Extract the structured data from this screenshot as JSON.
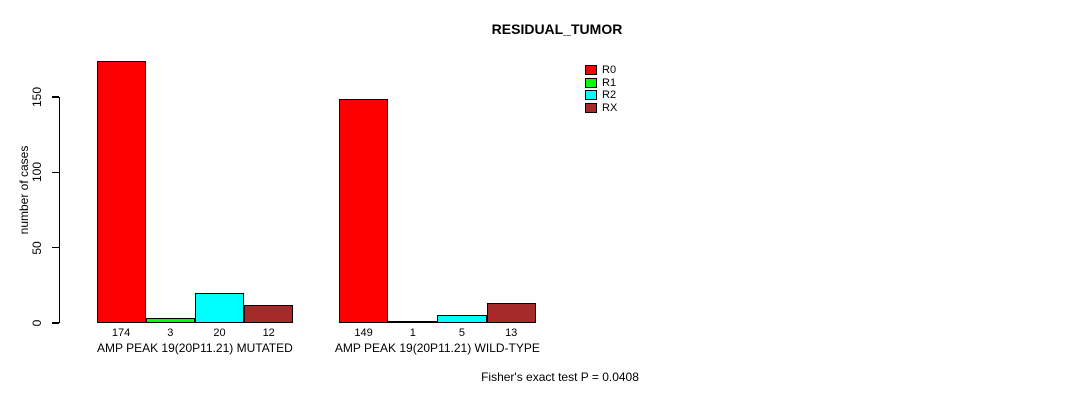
{
  "title": "RESIDUAL_TUMOR",
  "footer": "Fisher's exact test P = 0.0408",
  "chart_data": {
    "type": "bar",
    "title": "RESIDUAL_TUMOR",
    "xlabel": "",
    "ylabel": "number of cases",
    "ylim": [
      0,
      174
    ],
    "yticks": [
      0,
      50,
      100,
      150
    ],
    "grid": false,
    "legend_position": "top-right",
    "series": [
      {
        "name": "R0",
        "color": "#FF0000"
      },
      {
        "name": "R1",
        "color": "#00FF00"
      },
      {
        "name": "R2",
        "color": "#00FFFF"
      },
      {
        "name": "RX",
        "color": "#A52A2A"
      }
    ],
    "groups": [
      {
        "label": "AMP PEAK 19(20P11.21) MUTATED",
        "values": [
          174,
          3,
          20,
          12
        ]
      },
      {
        "label": "AMP PEAK 19(20P11.21) WILD-TYPE",
        "values": [
          149,
          1,
          5,
          13
        ]
      }
    ],
    "annotation": "Fisher's exact test P = 0.0408"
  }
}
